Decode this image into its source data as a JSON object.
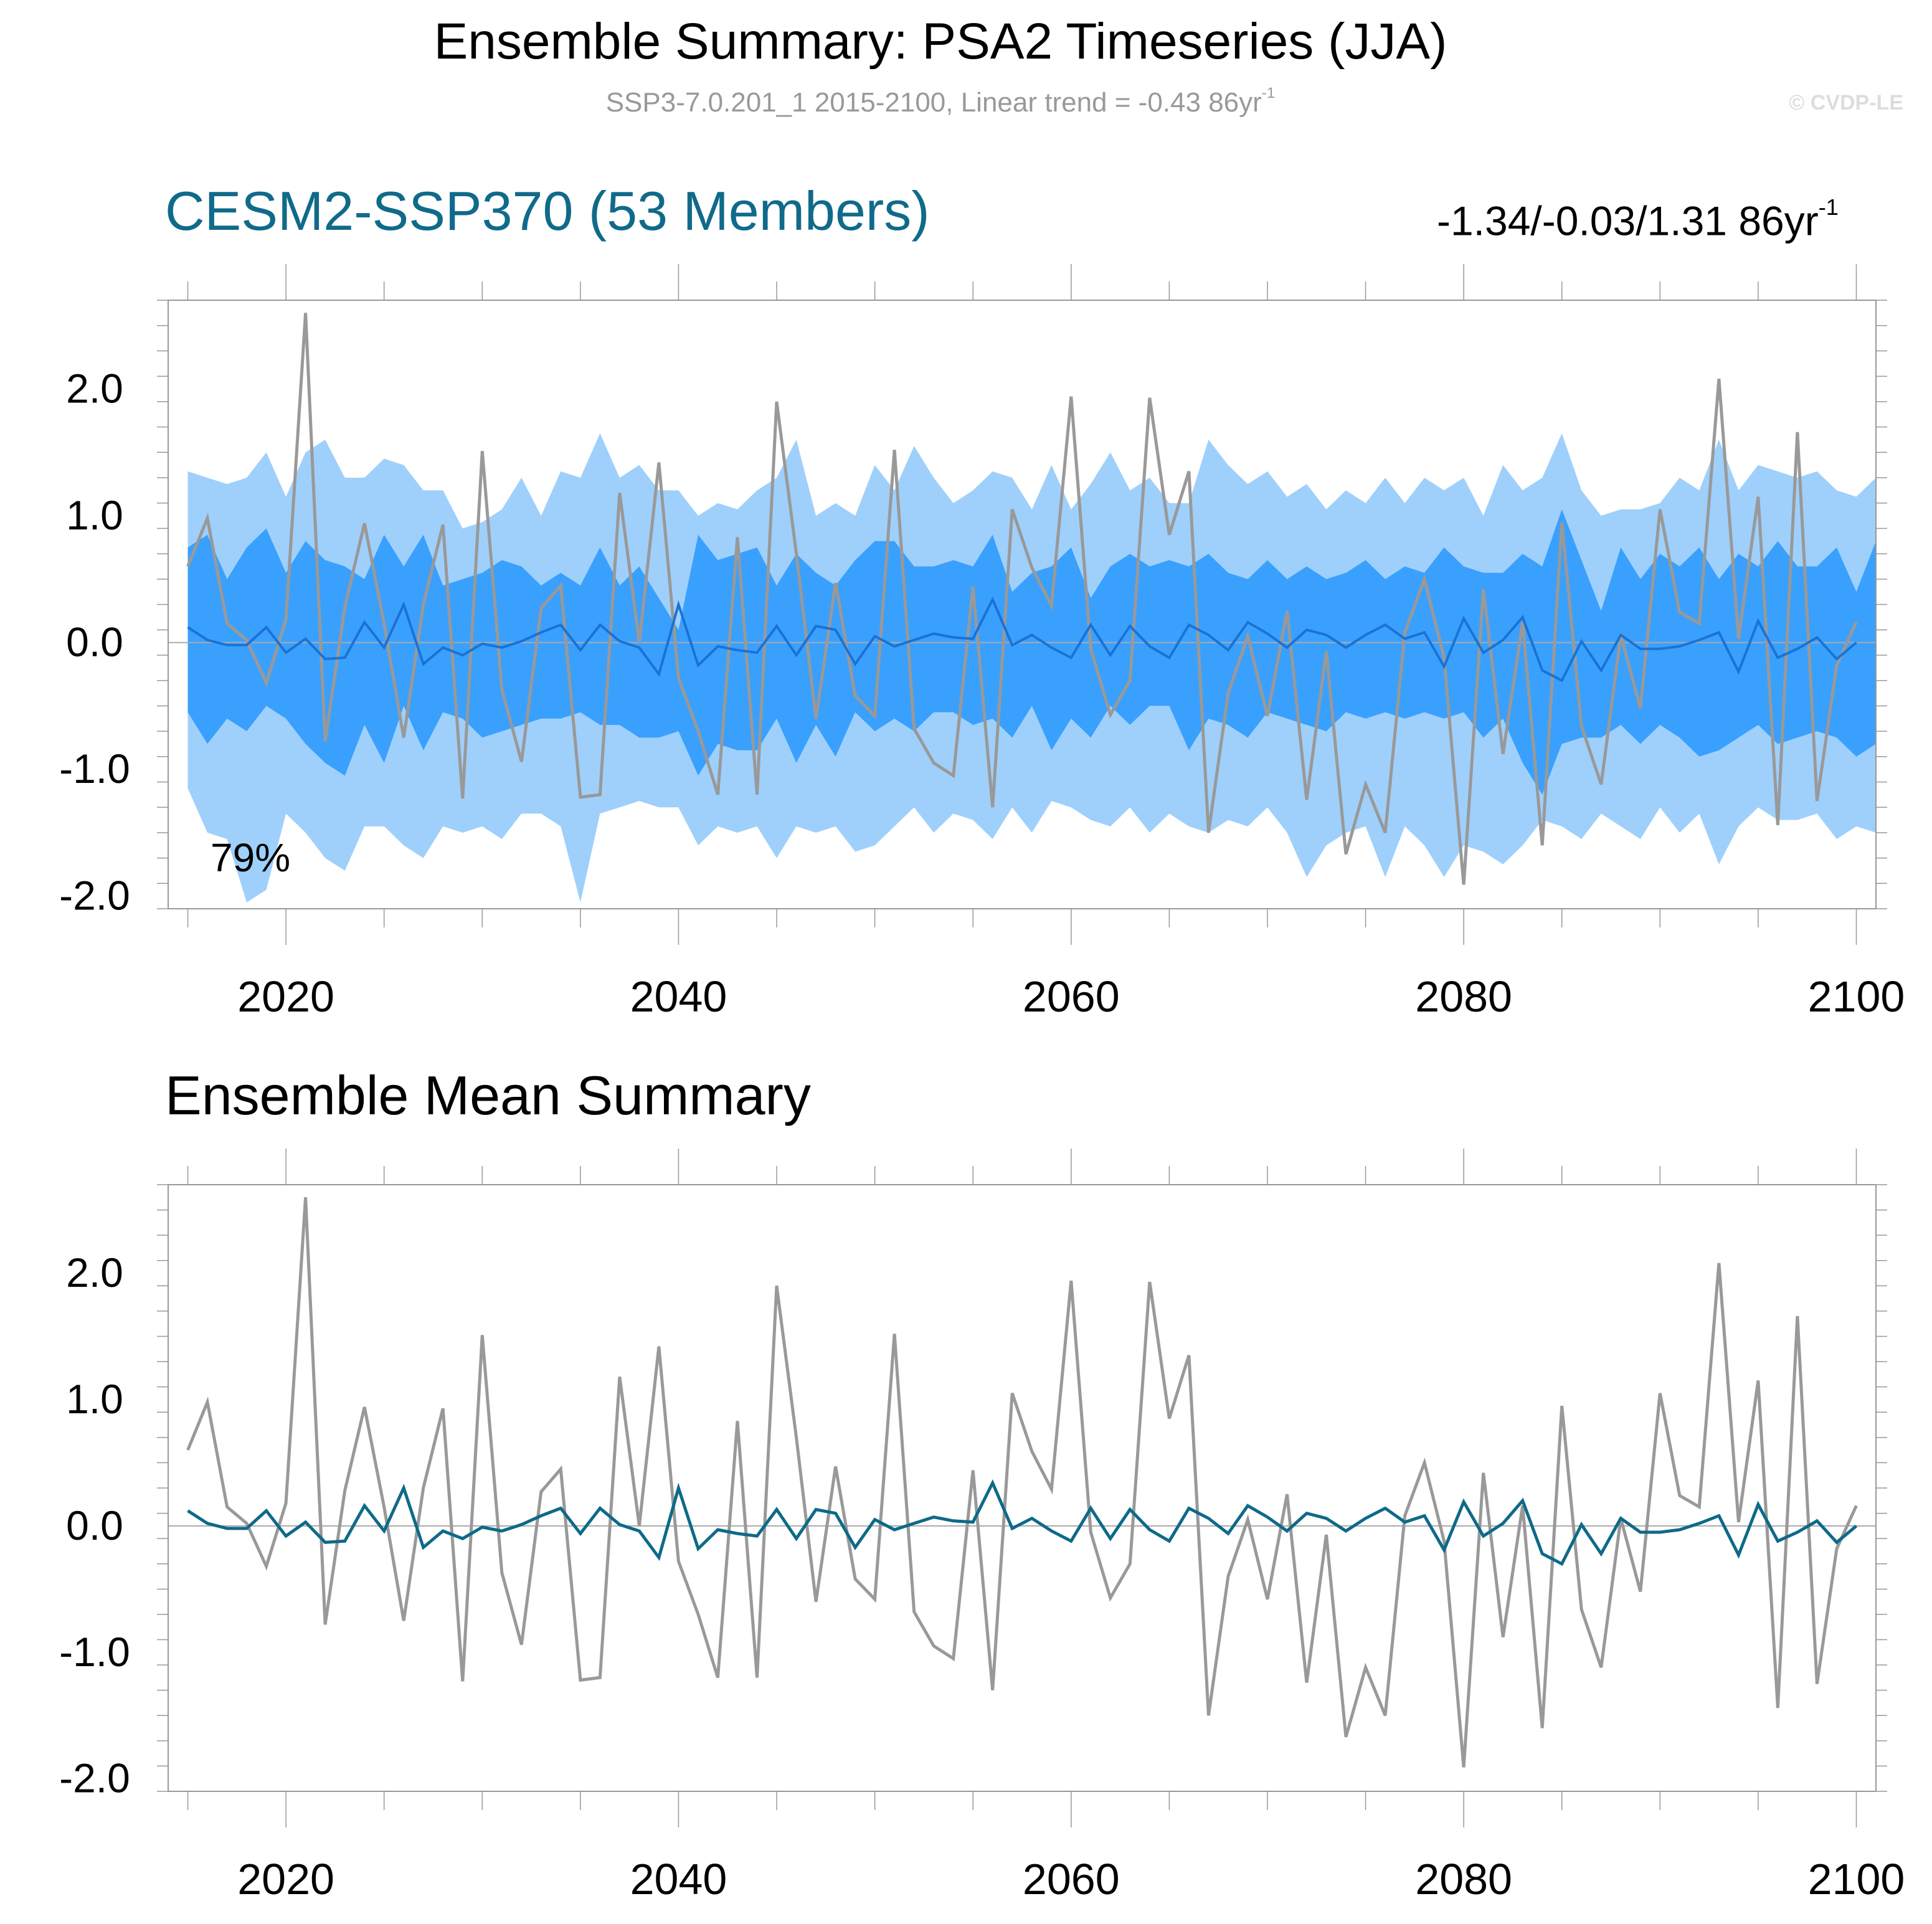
{
  "header": {
    "title": "Ensemble Summary: PSA2 Timeseries (JJA)",
    "subtitle": "SSP3-7.0.201_1 2015-2100, Linear trend = -0.43 86yr",
    "subtitle_unit_sup": "-1",
    "copyright": "© CVDP-LE"
  },
  "panels": {
    "top": {
      "title": "CESM2-SSP370 (53 Members)",
      "title_color": "#106a8a",
      "trend_label": "-1.34/-0.03/1.31 86yr",
      "trend_sup": "-1",
      "annotation": "79%"
    },
    "bottom": {
      "title": "Ensemble Mean Summary",
      "title_color": "#000000"
    }
  },
  "colors": {
    "band_outer": "#9fd0fc",
    "band_inner": "#3aa0fd",
    "ens_mean_top": "#1a72d6",
    "ens_mean_bottom": "#0e6a88",
    "obs_line": "#999999",
    "zero_line": "#aaaaaa",
    "frame": "#999999"
  },
  "chart_data": [
    {
      "type": "area",
      "panel": "top",
      "title": "CESM2-SSP370 (53 Members)",
      "xlim": [
        2014,
        2101
      ],
      "ylim": [
        -2.1,
        2.7
      ],
      "yticks": [
        "2.0",
        "1.0",
        "0.0",
        "-1.0",
        "-2.0"
      ],
      "ytick_values": [
        2.0,
        1.0,
        0.0,
        -1.0,
        -2.0
      ],
      "xticks": [
        "2020",
        "2040",
        "2060",
        "2080",
        "2100"
      ],
      "xtick_values": [
        2020,
        2040,
        2060,
        2080,
        2100
      ],
      "x_start": 2015,
      "series": [
        {
          "role": "band_outer_upper",
          "values": [
            1.35,
            1.3,
            1.25,
            1.3,
            1.5,
            1.15,
            1.5,
            1.6,
            1.3,
            1.3,
            1.45,
            1.4,
            1.2,
            1.2,
            0.9,
            0.95,
            1.05,
            1.3,
            1.0,
            1.35,
            1.3,
            1.65,
            1.3,
            1.4,
            1.2,
            1.2,
            1.0,
            1.1,
            1.05,
            1.2,
            1.3,
            1.6,
            1.0,
            1.1,
            1.0,
            1.4,
            1.2,
            1.55,
            1.3,
            1.1,
            1.2,
            1.35,
            1.3,
            1.05,
            1.4,
            1.05,
            1.25,
            1.5,
            1.2,
            1.3,
            1.1,
            1.1,
            1.6,
            1.4,
            1.25,
            1.35,
            1.15,
            1.25,
            1.05,
            1.2,
            1.1,
            1.3,
            1.1,
            1.3,
            1.2,
            1.3,
            1.0,
            1.4,
            1.2,
            1.3,
            1.65,
            1.2,
            1.0,
            1.05,
            1.05,
            1.1,
            1.3,
            1.2,
            1.6,
            1.2,
            1.4,
            1.35,
            1.3,
            1.35,
            1.2,
            1.15,
            1.3
          ]
        },
        {
          "role": "band_inner_upper",
          "values": [
            0.75,
            0.85,
            0.5,
            0.75,
            0.9,
            0.55,
            0.8,
            0.65,
            0.6,
            0.5,
            0.85,
            0.6,
            0.85,
            0.45,
            0.5,
            0.55,
            0.65,
            0.6,
            0.45,
            0.55,
            0.45,
            0.75,
            0.45,
            0.6,
            0.35,
            0.1,
            0.85,
            0.65,
            0.7,
            0.75,
            0.45,
            0.7,
            0.55,
            0.45,
            0.65,
            0.8,
            0.8,
            0.6,
            0.6,
            0.65,
            0.6,
            0.85,
            0.4,
            0.55,
            0.6,
            0.75,
            0.35,
            0.6,
            0.7,
            0.6,
            0.65,
            0.6,
            0.7,
            0.55,
            0.5,
            0.65,
            0.5,
            0.6,
            0.5,
            0.55,
            0.65,
            0.5,
            0.6,
            0.55,
            0.75,
            0.6,
            0.55,
            0.55,
            0.7,
            0.6,
            1.05,
            0.65,
            0.25,
            0.75,
            0.5,
            0.7,
            0.6,
            0.75,
            0.5,
            0.7,
            0.6,
            0.8,
            0.6,
            0.6,
            0.75,
            0.4,
            0.8
          ]
        },
        {
          "role": "band_inner_lower",
          "values": [
            -0.55,
            -0.8,
            -0.6,
            -0.7,
            -0.5,
            -0.6,
            -0.8,
            -0.95,
            -1.05,
            -0.65,
            -0.95,
            -0.5,
            -0.85,
            -0.55,
            -0.6,
            -0.75,
            -0.7,
            -0.65,
            -0.6,
            -0.6,
            -0.55,
            -0.65,
            -0.65,
            -0.75,
            -0.75,
            -0.7,
            -1.05,
            -0.8,
            -0.85,
            -0.85,
            -0.6,
            -0.95,
            -0.65,
            -0.9,
            -0.55,
            -0.7,
            -0.6,
            -0.7,
            -0.55,
            -0.55,
            -0.65,
            -0.6,
            -0.75,
            -0.5,
            -0.85,
            -0.6,
            -0.75,
            -0.5,
            -0.65,
            -0.5,
            -0.5,
            -0.85,
            -0.6,
            -0.65,
            -0.75,
            -0.55,
            -0.6,
            -0.65,
            -0.7,
            -0.55,
            -0.6,
            -0.55,
            -0.6,
            -0.55,
            -0.6,
            -0.55,
            -0.75,
            -0.6,
            -0.95,
            -1.2,
            -0.8,
            -0.75,
            -0.75,
            -0.65,
            -0.8,
            -0.65,
            -0.75,
            -0.9,
            -0.85,
            -0.75,
            -0.65,
            -0.8,
            -0.75,
            -0.7,
            -0.75,
            -0.9,
            -0.8
          ]
        },
        {
          "role": "band_outer_lower",
          "values": [
            -1.15,
            -1.5,
            -1.55,
            -2.05,
            -1.95,
            -1.35,
            -1.5,
            -1.7,
            -1.8,
            -1.45,
            -1.45,
            -1.6,
            -1.7,
            -1.45,
            -1.5,
            -1.45,
            -1.55,
            -1.35,
            -1.35,
            -1.45,
            -2.05,
            -1.35,
            -1.3,
            -1.25,
            -1.3,
            -1.3,
            -1.6,
            -1.45,
            -1.5,
            -1.45,
            -1.7,
            -1.45,
            -1.5,
            -1.45,
            -1.65,
            -1.6,
            -1.45,
            -1.3,
            -1.5,
            -1.35,
            -1.4,
            -1.55,
            -1.3,
            -1.5,
            -1.25,
            -1.3,
            -1.4,
            -1.45,
            -1.3,
            -1.5,
            -1.35,
            -1.45,
            -1.5,
            -1.4,
            -1.45,
            -1.3,
            -1.5,
            -1.85,
            -1.6,
            -1.5,
            -1.45,
            -1.85,
            -1.45,
            -1.6,
            -1.85,
            -1.6,
            -1.65,
            -1.75,
            -1.6,
            -1.4,
            -1.45,
            -1.55,
            -1.35,
            -1.45,
            -1.55,
            -1.3,
            -1.5,
            -1.35,
            -1.75,
            -1.45,
            -1.3,
            -1.4,
            -1.4,
            -1.35,
            -1.55,
            -1.45,
            -1.5
          ]
        },
        {
          "role": "ensemble_mean",
          "values": [
            0.12,
            0.02,
            -0.02,
            -0.02,
            0.12,
            -0.08,
            0.03,
            -0.13,
            -0.12,
            0.16,
            -0.04,
            0.3,
            -0.17,
            -0.04,
            -0.1,
            -0.01,
            -0.04,
            0.01,
            0.08,
            0.14,
            -0.06,
            0.14,
            0.01,
            -0.04,
            -0.25,
            0.3,
            -0.18,
            -0.03,
            -0.06,
            -0.08,
            0.13,
            -0.1,
            0.13,
            0.1,
            -0.17,
            0.05,
            -0.03,
            0.02,
            0.07,
            0.04,
            0.03,
            0.34,
            -0.02,
            0.06,
            -0.04,
            -0.12,
            0.14,
            -0.1,
            0.13,
            -0.03,
            -0.12,
            0.14,
            0.06,
            -0.06,
            0.16,
            0.07,
            -0.04,
            0.1,
            0.06,
            -0.04,
            0.06,
            0.14,
            0.03,
            0.08,
            -0.19,
            0.19,
            -0.08,
            0.02,
            0.2,
            -0.22,
            -0.3,
            0.01,
            -0.22,
            0.06,
            -0.05,
            -0.05,
            -0.03,
            0.02,
            0.08,
            -0.23,
            0.17,
            -0.12,
            -0.05,
            0.04,
            -0.13,
            0.0
          ]
        },
        {
          "role": "observed",
          "values": [
            0.6,
            0.98,
            0.15,
            0.02,
            -0.32,
            0.18,
            2.6,
            -0.78,
            0.28,
            0.94,
            0.15,
            -0.75,
            0.3,
            0.93,
            -1.23,
            1.51,
            -0.37,
            -0.94,
            0.27,
            0.45,
            -1.22,
            -1.2,
            1.18,
            0.0,
            1.42,
            -0.28,
            -0.7,
            -1.2,
            0.83,
            -1.2,
            1.9,
            0.7,
            -0.6,
            0.47,
            -0.42,
            -0.58,
            1.52,
            -0.68,
            -0.95,
            -1.05,
            0.44,
            -1.3,
            1.05,
            0.59,
            0.29,
            1.94,
            -0.05,
            -0.57,
            -0.3,
            1.93,
            0.85,
            1.35,
            -1.5,
            -0.4,
            0.05,
            -0.58,
            0.25,
            -1.24,
            -0.07,
            -1.67,
            -1.12,
            -1.5,
            0.08,
            0.5,
            -0.12,
            -1.91,
            0.42,
            -0.88,
            0.16,
            -1.6,
            0.95,
            -0.66,
            -1.12,
            0.06,
            -0.52,
            1.05,
            0.24,
            0.15,
            2.08,
            0.03,
            1.15,
            -1.44,
            1.66,
            -1.25,
            -0.18,
            0.16
          ]
        }
      ]
    },
    {
      "type": "line",
      "panel": "bottom",
      "title": "Ensemble Mean Summary",
      "xlim": [
        2014,
        2101
      ],
      "ylim": [
        -2.1,
        2.7
      ],
      "yticks": [
        "2.0",
        "1.0",
        "0.0",
        "-1.0",
        "-2.0"
      ],
      "ytick_values": [
        2.0,
        1.0,
        0.0,
        -1.0,
        -2.0
      ],
      "xticks": [
        "2020",
        "2040",
        "2060",
        "2080",
        "2100"
      ],
      "xtick_values": [
        2020,
        2040,
        2060,
        2080,
        2100
      ],
      "x_start": 2015,
      "series": [
        {
          "role": "observed",
          "values": [
            0.6,
            0.98,
            0.15,
            0.02,
            -0.32,
            0.18,
            2.6,
            -0.78,
            0.28,
            0.94,
            0.15,
            -0.75,
            0.3,
            0.93,
            -1.23,
            1.51,
            -0.37,
            -0.94,
            0.27,
            0.45,
            -1.22,
            -1.2,
            1.18,
            0.0,
            1.42,
            -0.28,
            -0.7,
            -1.2,
            0.83,
            -1.2,
            1.9,
            0.7,
            -0.6,
            0.47,
            -0.42,
            -0.58,
            1.52,
            -0.68,
            -0.95,
            -1.05,
            0.44,
            -1.3,
            1.05,
            0.59,
            0.29,
            1.94,
            -0.05,
            -0.57,
            -0.3,
            1.93,
            0.85,
            1.35,
            -1.5,
            -0.4,
            0.05,
            -0.58,
            0.25,
            -1.24,
            -0.07,
            -1.67,
            -1.12,
            -1.5,
            0.08,
            0.5,
            -0.12,
            -1.91,
            0.42,
            -0.88,
            0.16,
            -1.6,
            0.95,
            -0.66,
            -1.12,
            0.06,
            -0.52,
            1.05,
            0.24,
            0.15,
            2.08,
            0.03,
            1.15,
            -1.44,
            1.66,
            -1.25,
            -0.18,
            0.16
          ]
        },
        {
          "role": "ensemble_mean",
          "values": [
            0.12,
            0.02,
            -0.02,
            -0.02,
            0.12,
            -0.08,
            0.03,
            -0.13,
            -0.12,
            0.16,
            -0.04,
            0.3,
            -0.17,
            -0.04,
            -0.1,
            -0.01,
            -0.04,
            0.01,
            0.08,
            0.14,
            -0.06,
            0.14,
            0.01,
            -0.04,
            -0.25,
            0.3,
            -0.18,
            -0.03,
            -0.06,
            -0.08,
            0.13,
            -0.1,
            0.13,
            0.1,
            -0.17,
            0.05,
            -0.03,
            0.02,
            0.07,
            0.04,
            0.03,
            0.34,
            -0.02,
            0.06,
            -0.04,
            -0.12,
            0.14,
            -0.1,
            0.13,
            -0.03,
            -0.12,
            0.14,
            0.06,
            -0.06,
            0.16,
            0.07,
            -0.04,
            0.1,
            0.06,
            -0.04,
            0.06,
            0.14,
            0.03,
            0.08,
            -0.19,
            0.19,
            -0.08,
            0.02,
            0.2,
            -0.22,
            -0.3,
            0.01,
            -0.22,
            0.06,
            -0.05,
            -0.05,
            -0.03,
            0.02,
            0.08,
            -0.23,
            0.17,
            -0.12,
            -0.05,
            0.04,
            -0.13,
            0.0
          ]
        }
      ]
    }
  ]
}
